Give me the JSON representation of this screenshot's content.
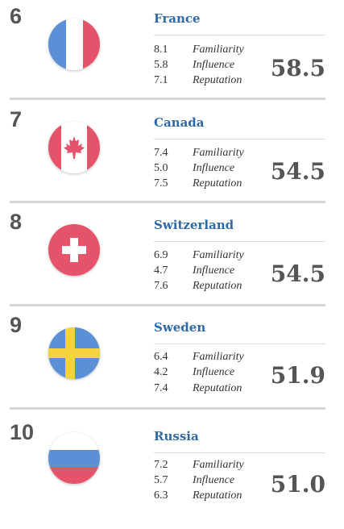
{
  "entries": [
    {
      "rank": "6",
      "country": "France",
      "flag_icon": "france-flag-icon",
      "metrics": [
        {
          "value": "8.1",
          "label": "Familiarity"
        },
        {
          "value": "5.8",
          "label": "Influence"
        },
        {
          "value": "7.1",
          "label": "Reputation"
        }
      ],
      "score": "58.5"
    },
    {
      "rank": "7",
      "country": "Canada",
      "flag_icon": "canada-flag-icon",
      "metrics": [
        {
          "value": "7.4",
          "label": "Familiarity"
        },
        {
          "value": "5.0",
          "label": "Influence"
        },
        {
          "value": "7.5",
          "label": "Reputation"
        }
      ],
      "score": "54.5"
    },
    {
      "rank": "8",
      "country": "Switzerland",
      "flag_icon": "switzerland-flag-icon",
      "metrics": [
        {
          "value": "6.9",
          "label": "Familiarity"
        },
        {
          "value": "4.7",
          "label": "Influence"
        },
        {
          "value": "7.6",
          "label": "Reputation"
        }
      ],
      "score": "54.5"
    },
    {
      "rank": "9",
      "country": "Sweden",
      "flag_icon": "sweden-flag-icon",
      "metrics": [
        {
          "value": "6.4",
          "label": "Familiarity"
        },
        {
          "value": "4.2",
          "label": "Influence"
        },
        {
          "value": "7.4",
          "label": "Reputation"
        }
      ],
      "score": "51.9"
    },
    {
      "rank": "10",
      "country": "Russia",
      "flag_icon": "russia-flag-icon",
      "metrics": [
        {
          "value": "7.2",
          "label": "Familiarity"
        },
        {
          "value": "5.7",
          "label": "Influence"
        },
        {
          "value": "6.3",
          "label": "Reputation"
        }
      ],
      "score": "51.0"
    }
  ],
  "colors": {
    "country_link": "#2f6aa8",
    "rank_text": "#555555",
    "divider": "#d6d6d6"
  }
}
